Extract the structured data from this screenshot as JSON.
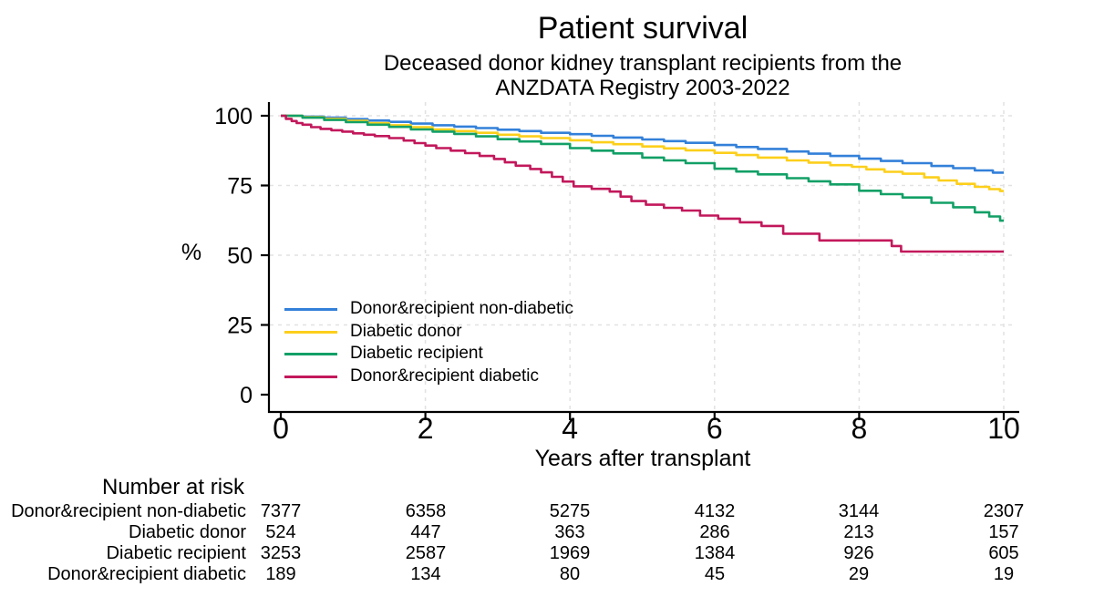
{
  "chart_data": {
    "type": "line",
    "subtype": "kaplan-meier-step",
    "title": "Patient survival",
    "subtitle_lines": [
      "Deceased donor kidney transplant recipients from the",
      "ANZDATA Registry 2003-2022"
    ],
    "xlabel": "Years after transplant",
    "ylabel": "%",
    "xlim": [
      0,
      10
    ],
    "ylim": [
      0,
      100
    ],
    "x_ticks": [
      0,
      2,
      4,
      6,
      8,
      10
    ],
    "y_ticks": [
      0,
      25,
      50,
      75,
      100
    ],
    "grid": true,
    "grid_color": "#e2e2e2",
    "axis_color": "#000000",
    "legend_position": "inside-lower-left",
    "series": [
      {
        "id": "non_diabetic",
        "name": "Donor&recipient non-diabetic",
        "color": "#3380d9",
        "points": [
          [
            0,
            100
          ],
          [
            0.3,
            99.7
          ],
          [
            0.6,
            99.3
          ],
          [
            0.9,
            98.8
          ],
          [
            1.2,
            98.3
          ],
          [
            1.5,
            97.8
          ],
          [
            1.8,
            97.2
          ],
          [
            2.1,
            96.6
          ],
          [
            2.4,
            96.1
          ],
          [
            2.7,
            95.6
          ],
          [
            3.0,
            95.0
          ],
          [
            3.3,
            94.5
          ],
          [
            3.6,
            93.9
          ],
          [
            4.0,
            93.4
          ],
          [
            4.3,
            92.8
          ],
          [
            4.6,
            92.2
          ],
          [
            5.0,
            91.5
          ],
          [
            5.3,
            90.9
          ],
          [
            5.6,
            90.3
          ],
          [
            6.0,
            89.5
          ],
          [
            6.3,
            88.8
          ],
          [
            6.6,
            88.1
          ],
          [
            7.0,
            87.2
          ],
          [
            7.3,
            86.4
          ],
          [
            7.6,
            85.6
          ],
          [
            8.0,
            84.6
          ],
          [
            8.3,
            83.8
          ],
          [
            8.6,
            83.0
          ],
          [
            9.0,
            82.0
          ],
          [
            9.3,
            81.2
          ],
          [
            9.6,
            80.4
          ],
          [
            9.85,
            79.6
          ],
          [
            10,
            79.6
          ]
        ]
      },
      {
        "id": "diabetic_donor",
        "name": "Diabetic donor",
        "color": "#fccf1b",
        "points": [
          [
            0,
            100
          ],
          [
            0.3,
            99.5
          ],
          [
            0.6,
            98.9
          ],
          [
            0.9,
            98.2
          ],
          [
            1.2,
            97.4
          ],
          [
            1.5,
            96.6
          ],
          [
            1.8,
            95.9
          ],
          [
            2.1,
            95.1
          ],
          [
            2.4,
            94.5
          ],
          [
            2.7,
            93.9
          ],
          [
            3.0,
            93.2
          ],
          [
            3.3,
            92.6
          ],
          [
            3.6,
            92.0
          ],
          [
            4.0,
            91.2
          ],
          [
            4.3,
            90.5
          ],
          [
            4.6,
            89.8
          ],
          [
            5.0,
            89.0
          ],
          [
            5.3,
            88.3
          ],
          [
            5.6,
            87.6
          ],
          [
            6.0,
            86.7
          ],
          [
            6.3,
            85.9
          ],
          [
            6.6,
            85.0
          ],
          [
            7.0,
            84.0
          ],
          [
            7.3,
            83.2
          ],
          [
            7.6,
            82.3
          ],
          [
            7.9,
            81.7
          ],
          [
            8.1,
            80.8
          ],
          [
            8.35,
            79.9
          ],
          [
            8.6,
            79.2
          ],
          [
            8.9,
            77.9
          ],
          [
            9.1,
            76.8
          ],
          [
            9.35,
            75.6
          ],
          [
            9.6,
            74.5
          ],
          [
            9.8,
            73.7
          ],
          [
            9.95,
            73.0
          ],
          [
            10,
            73.0
          ]
        ]
      },
      {
        "id": "diabetic_recipient",
        "name": "Diabetic recipient",
        "color": "#12a066",
        "points": [
          [
            0,
            100
          ],
          [
            0.3,
            99.3
          ],
          [
            0.6,
            98.5
          ],
          [
            0.9,
            97.7
          ],
          [
            1.2,
            96.8
          ],
          [
            1.5,
            96.0
          ],
          [
            1.8,
            95.1
          ],
          [
            2.1,
            94.3
          ],
          [
            2.4,
            93.5
          ],
          [
            2.7,
            92.6
          ],
          [
            3.0,
            91.6
          ],
          [
            3.3,
            90.8
          ],
          [
            3.6,
            89.9
          ],
          [
            4.0,
            88.4
          ],
          [
            4.3,
            87.5
          ],
          [
            4.6,
            86.5
          ],
          [
            5.0,
            85.0
          ],
          [
            5.3,
            84.0
          ],
          [
            5.6,
            83.0
          ],
          [
            6.0,
            81.0
          ],
          [
            6.3,
            80.0
          ],
          [
            6.6,
            79.0
          ],
          [
            7.0,
            77.6
          ],
          [
            7.3,
            76.5
          ],
          [
            7.6,
            75.4
          ],
          [
            8.0,
            73.1
          ],
          [
            8.3,
            71.9
          ],
          [
            8.6,
            70.7
          ],
          [
            9.0,
            68.8
          ],
          [
            9.3,
            67.2
          ],
          [
            9.6,
            65.4
          ],
          [
            9.8,
            63.9
          ],
          [
            9.95,
            62.4
          ],
          [
            10,
            62.4
          ]
        ]
      },
      {
        "id": "both_diabetic",
        "name": "Donor&recipient diabetic",
        "color": "#c2185b",
        "points": [
          [
            0,
            100
          ],
          [
            0.07,
            98.9
          ],
          [
            0.15,
            98.1
          ],
          [
            0.22,
            97.4
          ],
          [
            0.3,
            96.8
          ],
          [
            0.42,
            95.9
          ],
          [
            0.55,
            95.3
          ],
          [
            0.7,
            94.8
          ],
          [
            0.85,
            94.3
          ],
          [
            1.0,
            93.7
          ],
          [
            1.15,
            93.2
          ],
          [
            1.3,
            92.7
          ],
          [
            1.5,
            92.0
          ],
          [
            1.7,
            91.1
          ],
          [
            1.85,
            90.2
          ],
          [
            2.0,
            89.3
          ],
          [
            2.15,
            88.4
          ],
          [
            2.35,
            87.5
          ],
          [
            2.55,
            86.6
          ],
          [
            2.75,
            85.6
          ],
          [
            2.95,
            84.5
          ],
          [
            3.1,
            83.3
          ],
          [
            3.25,
            82.1
          ],
          [
            3.45,
            80.9
          ],
          [
            3.6,
            79.7
          ],
          [
            3.75,
            78.1
          ],
          [
            3.9,
            76.4
          ],
          [
            4.05,
            74.7
          ],
          [
            4.3,
            73.8
          ],
          [
            4.55,
            72.8
          ],
          [
            4.7,
            71.0
          ],
          [
            4.85,
            69.4
          ],
          [
            5.05,
            68.1
          ],
          [
            5.3,
            67.0
          ],
          [
            5.55,
            66.0
          ],
          [
            5.8,
            64.2
          ],
          [
            6.05,
            63.1
          ],
          [
            6.35,
            61.8
          ],
          [
            6.65,
            60.5
          ],
          [
            6.95,
            57.7
          ],
          [
            7.45,
            55.3
          ],
          [
            8.45,
            53.3
          ],
          [
            8.58,
            51.3
          ],
          [
            10,
            51.3
          ]
        ]
      }
    ]
  },
  "risk_table": {
    "header": "Number at risk",
    "time_points": [
      0,
      2,
      4,
      6,
      8,
      10
    ],
    "rows": [
      {
        "label": "Donor&recipient non-diabetic",
        "counts": [
          "7377",
          "6358",
          "5275",
          "4132",
          "3144",
          "2307"
        ]
      },
      {
        "label": "Diabetic donor",
        "counts": [
          "524",
          "447",
          "363",
          "286",
          "213",
          "157"
        ]
      },
      {
        "label": "Diabetic recipient",
        "counts": [
          "3253",
          "2587",
          "1969",
          "1384",
          "926",
          "605"
        ]
      },
      {
        "label": "Donor&recipient diabetic",
        "counts": [
          "189",
          "134",
          "80",
          "45",
          "29",
          "19"
        ]
      }
    ]
  }
}
